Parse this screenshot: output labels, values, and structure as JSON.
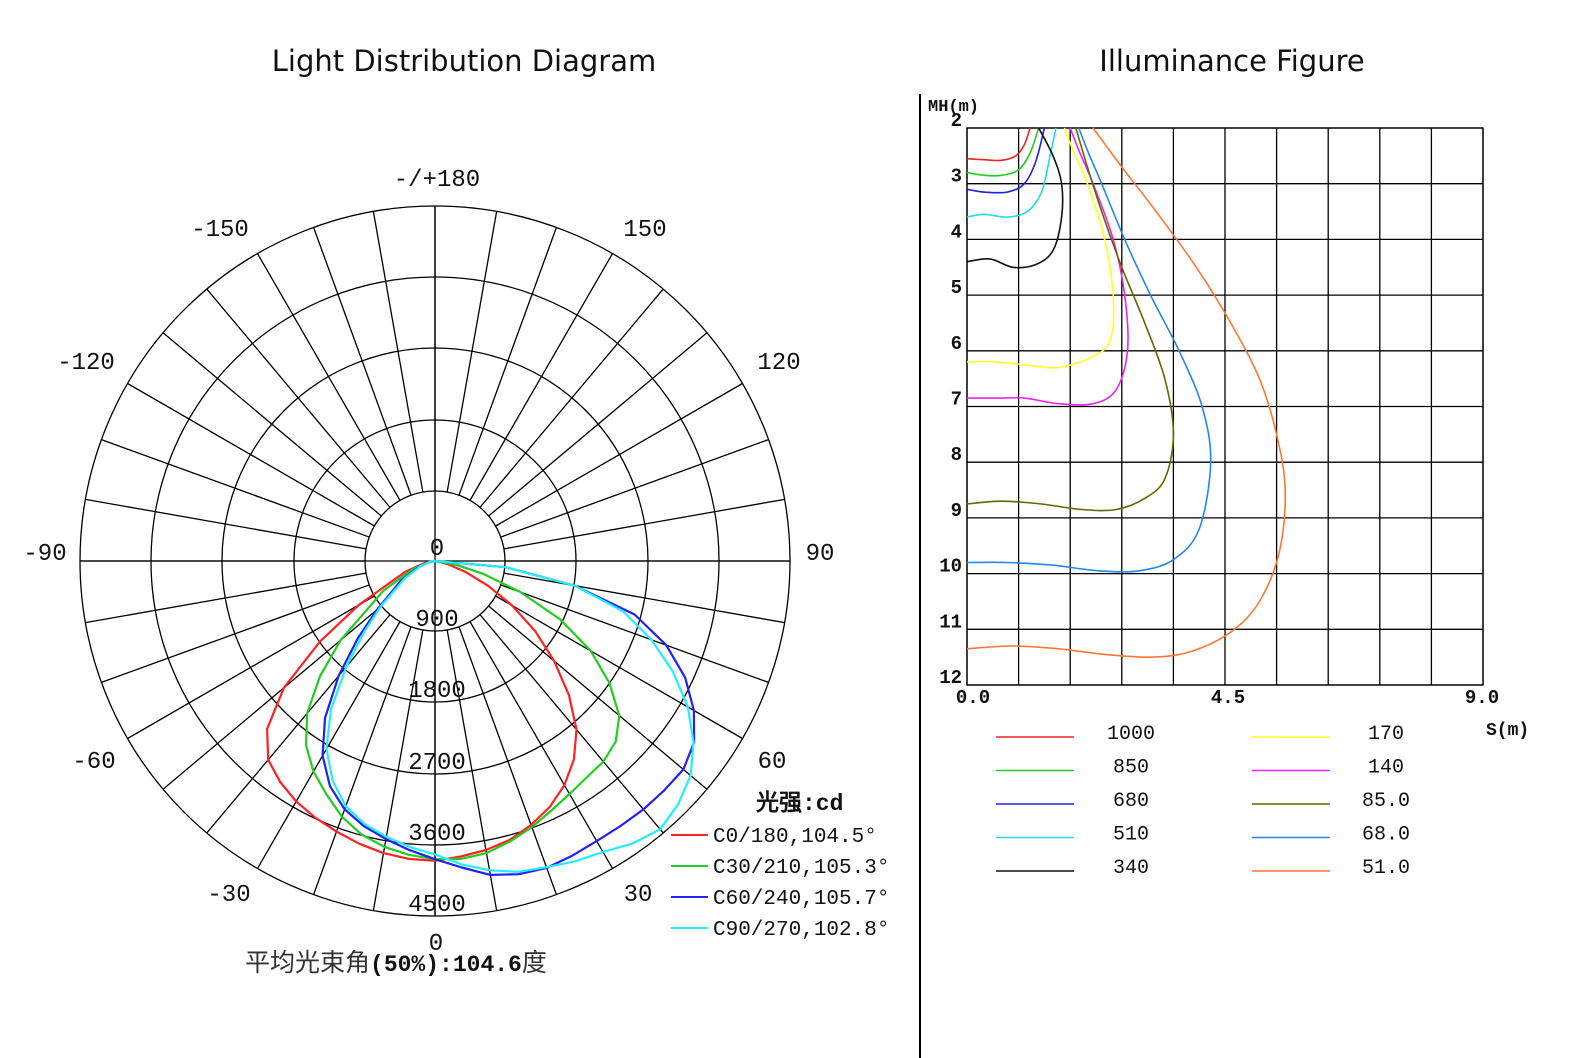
{
  "headings": {
    "left": "Light Distribution Diagram",
    "right": "Illuminance Figure"
  },
  "chart_data": [
    {
      "type": "polar",
      "title": "Light Distribution Diagram",
      "angle_labels": [
        {
          "deg": 180,
          "text": "-/+180"
        },
        {
          "deg": -150,
          "text": "-150"
        },
        {
          "deg": 150,
          "text": "150"
        },
        {
          "deg": -120,
          "text": "-120"
        },
        {
          "deg": 120,
          "text": "120"
        },
        {
          "deg": -90,
          "text": "-90"
        },
        {
          "deg": 90,
          "text": "90"
        },
        {
          "deg": -60,
          "text": "-60"
        },
        {
          "deg": 60,
          "text": "60"
        },
        {
          "deg": -30,
          "text": "-30"
        },
        {
          "deg": 30,
          "text": "30"
        },
        {
          "deg": 0,
          "text": "0"
        }
      ],
      "radial_ticks": [
        "0",
        "900",
        "1800",
        "2700",
        "3600",
        "4500"
      ],
      "r_max": 4500,
      "unit_label": "光强:cd",
      "footer": {
        "label": "平均光束角",
        "paren": "(50%)",
        "value": ":104.6",
        "unit": "度"
      },
      "series": [
        {
          "name": "C0/180,104.5°",
          "color": "#ff2222",
          "points": [
            [
              -90,
              0
            ],
            [
              -80,
              120
            ],
            [
              -70,
              400
            ],
            [
              -60,
              1120
            ],
            [
              -55,
              1780
            ],
            [
              -50,
              2500
            ],
            [
              -45,
              3010
            ],
            [
              -40,
              3290
            ],
            [
              -35,
              3420
            ],
            [
              -30,
              3520
            ],
            [
              -25,
              3590
            ],
            [
              -20,
              3650
            ],
            [
              -15,
              3710
            ],
            [
              -10,
              3760
            ],
            [
              -5,
              3790
            ],
            [
              0,
              3800
            ],
            [
              5,
              3760
            ],
            [
              10,
              3720
            ],
            [
              15,
              3660
            ],
            [
              20,
              3560
            ],
            [
              25,
              3440
            ],
            [
              30,
              3280
            ],
            [
              35,
              3070
            ],
            [
              40,
              2790
            ],
            [
              45,
              2400
            ],
            [
              50,
              1970
            ],
            [
              55,
              1550
            ],
            [
              60,
              1130
            ],
            [
              65,
              740
            ],
            [
              70,
              420
            ],
            [
              75,
              200
            ],
            [
              80,
              70
            ],
            [
              90,
              0
            ]
          ]
        },
        {
          "name": "C30/210,105.3°",
          "color": "#22cc22",
          "points": [
            [
              -90,
              0
            ],
            [
              -80,
              80
            ],
            [
              -70,
              300
            ],
            [
              -60,
              760
            ],
            [
              -50,
              1560
            ],
            [
              -45,
              2060
            ],
            [
              -40,
              2520
            ],
            [
              -35,
              2850
            ],
            [
              -30,
              3080
            ],
            [
              -25,
              3260
            ],
            [
              -20,
              3450
            ],
            [
              -15,
              3590
            ],
            [
              -10,
              3680
            ],
            [
              -5,
              3740
            ],
            [
              0,
              3780
            ],
            [
              5,
              3790
            ],
            [
              10,
              3760
            ],
            [
              15,
              3680
            ],
            [
              20,
              3590
            ],
            [
              25,
              3490
            ],
            [
              30,
              3410
            ],
            [
              35,
              3350
            ],
            [
              40,
              3320
            ],
            [
              45,
              3240
            ],
            [
              50,
              3050
            ],
            [
              55,
              2700
            ],
            [
              60,
              2280
            ],
            [
              65,
              1750
            ],
            [
              70,
              1150
            ],
            [
              75,
              640
            ],
            [
              80,
              270
            ],
            [
              90,
              0
            ]
          ]
        },
        {
          "name": "C60/240,105.7°",
          "color": "#2222ee",
          "points": [
            [
              -90,
              0
            ],
            [
              -80,
              60
            ],
            [
              -70,
              220
            ],
            [
              -60,
              500
            ],
            [
              -50,
              960
            ],
            [
              -45,
              1380
            ],
            [
              -40,
              1900
            ],
            [
              -35,
              2430
            ],
            [
              -30,
              2850
            ],
            [
              -25,
              3150
            ],
            [
              -20,
              3350
            ],
            [
              -15,
              3480
            ],
            [
              -10,
              3580
            ],
            [
              -5,
              3680
            ],
            [
              0,
              3780
            ],
            [
              5,
              3900
            ],
            [
              10,
              4040
            ],
            [
              15,
              4110
            ],
            [
              20,
              4140
            ],
            [
              25,
              4120
            ],
            [
              30,
              4100
            ],
            [
              35,
              4100
            ],
            [
              40,
              4110
            ],
            [
              45,
              4110
            ],
            [
              50,
              4110
            ],
            [
              55,
              4010
            ],
            [
              60,
              3790
            ],
            [
              65,
              3500
            ],
            [
              70,
              3120
            ],
            [
              75,
              2620
            ],
            [
              80,
              1800
            ],
            [
              85,
              900
            ],
            [
              90,
              0
            ]
          ]
        },
        {
          "name": "C90/270,102.8°",
          "color": "#22eeff",
          "points": [
            [
              -90,
              0
            ],
            [
              -80,
              60
            ],
            [
              -70,
              200
            ],
            [
              -60,
              450
            ],
            [
              -50,
              900
            ],
            [
              -45,
              1270
            ],
            [
              -40,
              1750
            ],
            [
              -35,
              2300
            ],
            [
              -30,
              2750
            ],
            [
              -25,
              3070
            ],
            [
              -20,
              3310
            ],
            [
              -15,
              3450
            ],
            [
              -10,
              3550
            ],
            [
              -5,
              3640
            ],
            [
              0,
              3720
            ],
            [
              5,
              3860
            ],
            [
              10,
              3980
            ],
            [
              15,
              4080
            ],
            [
              20,
              4130
            ],
            [
              25,
              4200
            ],
            [
              30,
              4260
            ],
            [
              35,
              4370
            ],
            [
              40,
              4440
            ],
            [
              45,
              4360
            ],
            [
              50,
              4230
            ],
            [
              55,
              4000
            ],
            [
              60,
              3700
            ],
            [
              65,
              3330
            ],
            [
              70,
              2920
            ],
            [
              75,
              2470
            ],
            [
              80,
              1800
            ],
            [
              85,
              900
            ],
            [
              90,
              0
            ]
          ]
        }
      ]
    },
    {
      "type": "line",
      "title": "Illuminance Figure",
      "ylabel": "MH(m)",
      "xlabel": "S(m)",
      "xlim": [
        0,
        9
      ],
      "ylim": [
        2,
        12
      ],
      "x_ticks": [
        "0.0",
        "4.5",
        "9.0"
      ],
      "y_ticks": [
        "2",
        "3",
        "4",
        "5",
        "6",
        "7",
        "8",
        "9",
        "10",
        "11",
        "12"
      ],
      "series": [
        {
          "name": "1000",
          "color": "#ee2222",
          "points": [
            [
              0,
              2.55
            ],
            [
              0.3,
              2.57
            ],
            [
              0.6,
              2.58
            ],
            [
              0.85,
              2.5
            ],
            [
              1.0,
              2.3
            ],
            [
              1.1,
              2.0
            ]
          ]
        },
        {
          "name": "850",
          "color": "#22cc22",
          "points": [
            [
              0,
              2.8
            ],
            [
              0.3,
              2.85
            ],
            [
              0.6,
              2.85
            ],
            [
              0.9,
              2.75
            ],
            [
              1.1,
              2.45
            ],
            [
              1.25,
              2.0
            ]
          ]
        },
        {
          "name": "680",
          "color": "#2222dd",
          "points": [
            [
              0,
              3.1
            ],
            [
              0.3,
              3.15
            ],
            [
              0.7,
              3.15
            ],
            [
              1.0,
              3.0
            ],
            [
              1.2,
              2.6
            ],
            [
              1.35,
              2.0
            ]
          ]
        },
        {
          "name": "510",
          "color": "#22dddd",
          "points": [
            [
              0,
              3.6
            ],
            [
              0.3,
              3.55
            ],
            [
              0.7,
              3.6
            ],
            [
              1.05,
              3.5
            ],
            [
              1.3,
              3.15
            ],
            [
              1.45,
              2.5
            ],
            [
              1.55,
              2.0
            ]
          ]
        },
        {
          "name": "340",
          "color": "#111111",
          "points": [
            [
              0,
              4.4
            ],
            [
              0.4,
              4.35
            ],
            [
              0.8,
              4.5
            ],
            [
              1.2,
              4.45
            ],
            [
              1.5,
              4.2
            ],
            [
              1.65,
              3.6
            ],
            [
              1.65,
              3.0
            ],
            [
              1.5,
              2.5
            ],
            [
              1.25,
              2.0
            ]
          ]
        },
        {
          "name": "170",
          "color": "#ffff22",
          "points": [
            [
              0,
              6.2
            ],
            [
              0.5,
              6.2
            ],
            [
              1.0,
              6.25
            ],
            [
              1.6,
              6.3
            ],
            [
              2.2,
              6.1
            ],
            [
              2.5,
              5.8
            ],
            [
              2.55,
              5.0
            ],
            [
              2.4,
              4.0
            ],
            [
              2.1,
              3.0
            ],
            [
              1.85,
              2.4
            ],
            [
              1.7,
              2.0
            ]
          ]
        },
        {
          "name": "140",
          "color": "#ee22ee",
          "points": [
            [
              0,
              6.85
            ],
            [
              0.5,
              6.85
            ],
            [
              1.0,
              6.85
            ],
            [
              1.6,
              6.95
            ],
            [
              2.2,
              6.95
            ],
            [
              2.6,
              6.7
            ],
            [
              2.8,
              6.0
            ],
            [
              2.75,
              5.0
            ],
            [
              2.55,
              4.0
            ],
            [
              2.2,
              3.0
            ],
            [
              1.95,
              2.4
            ],
            [
              1.8,
              2.0
            ]
          ]
        },
        {
          "name": "85.0",
          "color": "#666600",
          "points": [
            [
              0,
              8.75
            ],
            [
              0.6,
              8.7
            ],
            [
              1.3,
              8.75
            ],
            [
              2.0,
              8.85
            ],
            [
              2.6,
              8.85
            ],
            [
              3.1,
              8.65
            ],
            [
              3.45,
              8.3
            ],
            [
              3.6,
              7.5
            ],
            [
              3.45,
              6.5
            ],
            [
              3.1,
              5.5
            ],
            [
              2.7,
              4.5
            ],
            [
              2.35,
              3.5
            ],
            [
              2.1,
              2.7
            ],
            [
              1.9,
              2.0
            ]
          ]
        },
        {
          "name": "68.0",
          "color": "#2288ee",
          "points": [
            [
              0,
              9.8
            ],
            [
              0.7,
              9.8
            ],
            [
              1.5,
              9.85
            ],
            [
              2.3,
              9.95
            ],
            [
              3.0,
              9.95
            ],
            [
              3.6,
              9.75
            ],
            [
              4.05,
              9.2
            ],
            [
              4.25,
              8.0
            ],
            [
              4.1,
              7.0
            ],
            [
              3.7,
              6.0
            ],
            [
              3.2,
              5.0
            ],
            [
              2.75,
              4.0
            ],
            [
              2.35,
              3.0
            ],
            [
              2.1,
              2.4
            ],
            [
              1.95,
              2.0
            ]
          ]
        },
        {
          "name": "51.0",
          "color": "#ff7733",
          "points": [
            [
              0,
              11.35
            ],
            [
              0.8,
              11.3
            ],
            [
              1.6,
              11.35
            ],
            [
              2.4,
              11.45
            ],
            [
              3.2,
              11.5
            ],
            [
              3.9,
              11.4
            ],
            [
              4.6,
              11.05
            ],
            [
              5.1,
              10.5
            ],
            [
              5.45,
              9.6
            ],
            [
              5.55,
              8.5
            ],
            [
              5.4,
              7.5
            ],
            [
              5.1,
              6.5
            ],
            [
              4.6,
              5.5
            ],
            [
              4.0,
              4.5
            ],
            [
              3.3,
              3.5
            ],
            [
              2.7,
              2.7
            ],
            [
              2.2,
              2.0
            ]
          ]
        }
      ]
    }
  ]
}
